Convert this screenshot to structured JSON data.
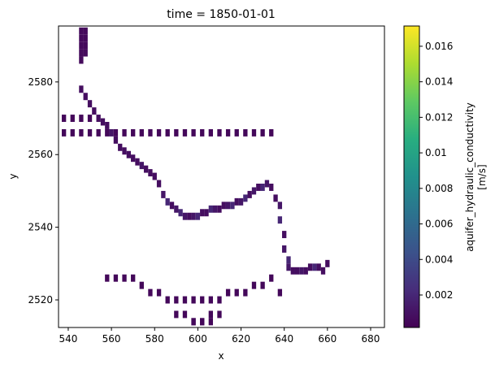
{
  "chart_data": {
    "type": "heatmap",
    "title": "time = 1850-01-01",
    "xlabel": "x",
    "ylabel": "y",
    "colorbar_label": [
      "aquifer_hydraulic_conductivity",
      "[m/s]"
    ],
    "colormap": "viridis",
    "xlim": [
      535.5,
      686.4
    ],
    "ylim": [
      2512.4,
      2595.4
    ],
    "xticks": [
      540,
      560,
      580,
      600,
      620,
      640,
      660,
      680
    ],
    "yticks": [
      2520,
      2540,
      2560,
      2580
    ],
    "clim": [
      0.00017,
      0.01714
    ],
    "cticks": [
      0.002,
      0.004,
      0.006,
      0.008,
      0.01,
      0.012,
      0.014,
      0.016
    ],
    "cells": {
      "x": [
        546,
        548,
        546,
        548,
        546,
        548,
        546,
        548,
        546,
        546,
        548,
        550,
        552,
        554,
        556,
        558,
        560,
        562,
        564,
        566,
        568,
        570,
        572,
        574,
        576,
        578,
        580,
        582,
        584,
        586,
        588,
        590,
        592,
        594,
        596,
        598,
        600,
        602,
        604,
        606,
        608,
        610,
        612,
        614,
        616,
        618,
        620,
        622,
        624,
        626,
        628,
        630,
        632,
        634,
        636,
        638,
        638,
        640,
        640,
        642,
        642,
        644,
        646,
        648,
        650,
        652,
        654,
        656,
        658,
        660,
        538,
        542,
        546,
        550,
        538,
        542,
        546,
        550,
        554,
        558,
        562,
        566,
        570,
        574,
        578,
        582,
        586,
        590,
        594,
        598,
        602,
        606,
        610,
        614,
        618,
        622,
        626,
        630,
        634,
        558,
        562,
        566,
        570,
        574,
        578,
        582,
        586,
        590,
        594,
        598,
        602,
        606,
        610,
        614,
        618,
        622,
        626,
        630,
        634,
        638,
        590,
        594,
        598,
        602,
        606,
        610,
        598,
        602,
        606
      ],
      "y": [
        2594,
        2594,
        2592,
        2592,
        2590,
        2590,
        2588,
        2588,
        2586,
        2578,
        2576,
        2574,
        2572,
        2570,
        2569,
        2568,
        2566,
        2564,
        2562,
        2561,
        2560,
        2559,
        2558,
        2557,
        2556,
        2555,
        2554,
        2552,
        2549,
        2547,
        2546,
        2545,
        2544,
        2543,
        2543,
        2543,
        2543,
        2544,
        2544,
        2545,
        2545,
        2545,
        2546,
        2546,
        2546,
        2547,
        2547,
        2548,
        2549,
        2550,
        2551,
        2551,
        2552,
        2551,
        2548,
        2546,
        2542,
        2538,
        2534,
        2531,
        2529,
        2528,
        2528,
        2528,
        2528,
        2529,
        2529,
        2529,
        2528,
        2530,
        2566,
        2566,
        2566,
        2566,
        2570,
        2570,
        2570,
        2570,
        2566,
        2566,
        2566,
        2566,
        2566,
        2566,
        2566,
        2566,
        2566,
        2566,
        2566,
        2566,
        2566,
        2566,
        2566,
        2566,
        2566,
        2566,
        2566,
        2566,
        2566,
        2526,
        2526,
        2526,
        2526,
        2524,
        2522,
        2522,
        2520,
        2520,
        2520,
        2520,
        2520,
        2520,
        2520,
        2522,
        2522,
        2522,
        2524,
        2524,
        2526,
        2522,
        2516,
        2516,
        2514,
        2514,
        2516,
        2516,
        2514,
        2514,
        2514
      ],
      "values": [
        0.0006,
        0.0006,
        0.0006,
        0.0006,
        0.0006,
        0.0006,
        0.0006,
        0.0006,
        0.0006,
        0.0008,
        0.0008,
        0.0008,
        0.0008,
        0.0008,
        0.0008,
        0.0008,
        0.0012,
        0.0008,
        0.0008,
        0.0008,
        0.0008,
        0.0008,
        0.0008,
        0.0012,
        0.0008,
        0.0008,
        0.0008,
        0.0008,
        0.0012,
        0.002,
        0.0008,
        0.0012,
        0.002,
        0.0012,
        0.0008,
        0.0012,
        0.002,
        0.0008,
        0.0008,
        0.002,
        0.0012,
        0.0008,
        0.0008,
        0.0012,
        0.002,
        0.0008,
        0.0012,
        0.002,
        0.0008,
        0.0012,
        0.0008,
        0.002,
        0.0012,
        0.0008,
        0.0008,
        0.0012,
        0.002,
        0.0008,
        0.0012,
        0.002,
        0.0012,
        0.0008,
        0.0008,
        0.0012,
        0.0008,
        0.0008,
        0.002,
        0.0008,
        0.0008,
        0.0008,
        0.0005,
        0.0005,
        0.0005,
        0.0005,
        0.0005,
        0.0005,
        0.0005,
        0.0005,
        0.0005,
        0.0005,
        0.0005,
        0.0005,
        0.0005,
        0.0005,
        0.0005,
        0.0005,
        0.0005,
        0.0005,
        0.0005,
        0.0005,
        0.0005,
        0.0005,
        0.0005,
        0.0005,
        0.0005,
        0.0005,
        0.0005,
        0.0005,
        0.0005,
        0.0005,
        0.0005,
        0.0005,
        0.0005,
        0.0005,
        0.0005,
        0.0005,
        0.0005,
        0.0005,
        0.0005,
        0.0005,
        0.0005,
        0.0005,
        0.0005,
        0.0005,
        0.0005,
        0.0005,
        0.0005,
        0.0005,
        0.0005,
        0.0005,
        0.0005,
        0.0005,
        0.0005,
        0.0005,
        0.0005,
        0.0005,
        0.0005,
        0.0005,
        0.0005
      ]
    }
  }
}
